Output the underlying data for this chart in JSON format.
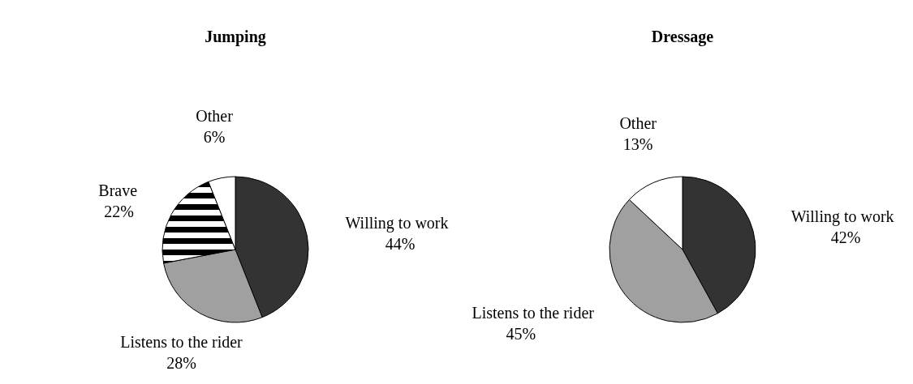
{
  "chart_data": [
    {
      "type": "pie",
      "title": "Jumping",
      "categories": [
        "Willing to work",
        "Listens to the rider",
        "Brave",
        "Other"
      ],
      "values": [
        44,
        28,
        22,
        6
      ],
      "colors": [
        "#333333",
        "#a0a0a0",
        "#000000",
        "#ffffff"
      ],
      "value_labels": [
        "44%",
        "28%",
        "22%",
        "6%"
      ]
    },
    {
      "type": "pie",
      "title": "Dressage",
      "categories": [
        "Willing to work",
        "Listens to the rider",
        "Other"
      ],
      "values": [
        42,
        45,
        13
      ],
      "colors": [
        "#333333",
        "#a0a0a0",
        "#ffffff"
      ],
      "value_labels": [
        "42%",
        "45%",
        "13%"
      ]
    }
  ]
}
